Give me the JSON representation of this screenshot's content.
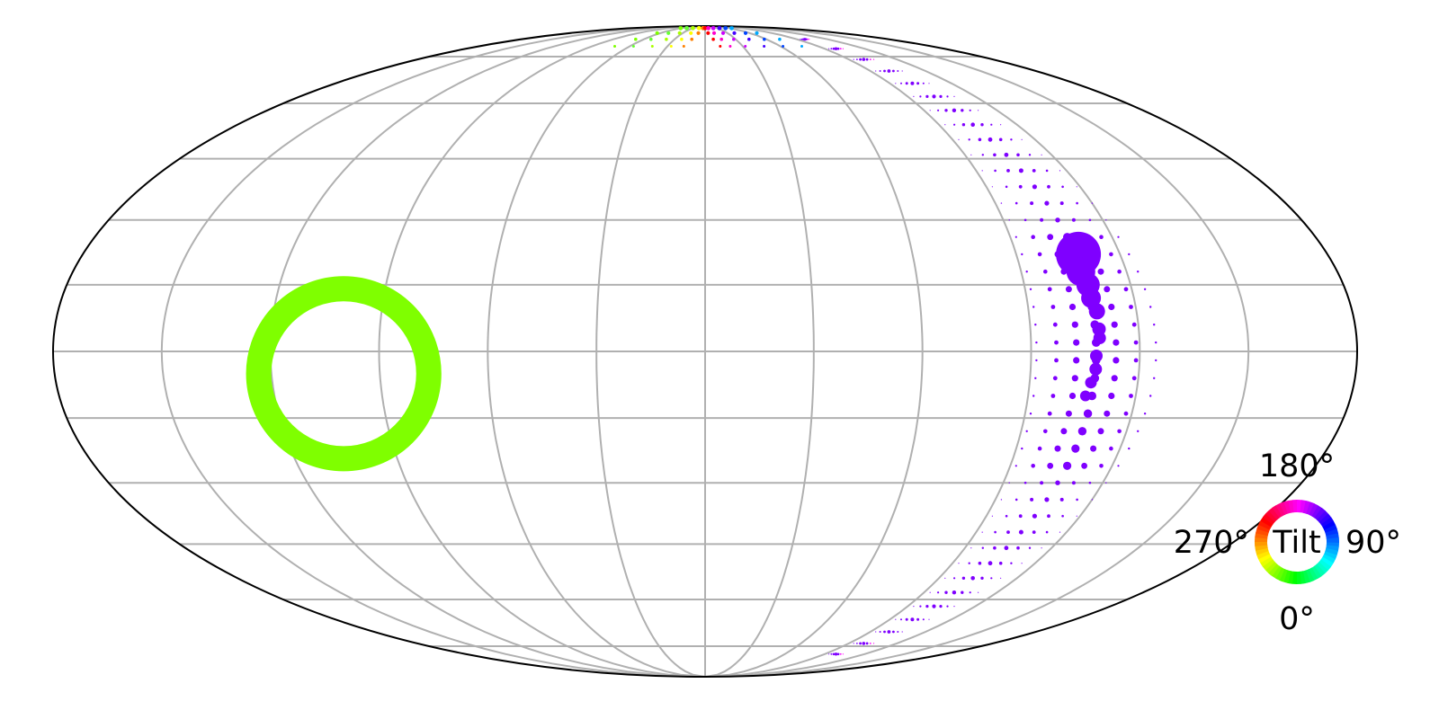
{
  "chart_data": {
    "type": "scatter",
    "projection": "mollweide",
    "grid": true,
    "grid_color": "#b0b0b0",
    "frame_color": "#000000",
    "meridians_deg": [
      -150,
      -120,
      -90,
      -60,
      -30,
      0,
      30,
      60,
      90,
      120,
      150
    ],
    "parallels_deg": [
      -75,
      -60,
      -45,
      -30,
      -15,
      0,
      15,
      30,
      45,
      60,
      75
    ],
    "marker_color_encodes": "tilt angle (hue wheel)",
    "ring_marker": {
      "lon": -100,
      "lat": -5,
      "radius_deg": 22,
      "color": "#7fff00"
    },
    "main_arc": {
      "color": "#7f00ff",
      "lon_equator": 108,
      "points": [
        {
          "lon": 108,
          "lat": 22,
          "size": 5
        },
        {
          "lon": 107,
          "lat": 18,
          "size": 3.2
        },
        {
          "lon": 108,
          "lat": 15,
          "size": 2.6
        },
        {
          "lon": 108,
          "lat": 12,
          "size": 2.2
        },
        {
          "lon": 109,
          "lat": 9,
          "size": 1.8
        },
        {
          "lon": 109,
          "lat": 5,
          "size": 1.5
        },
        {
          "lon": 109,
          "lat": 3,
          "size": 1.4
        },
        {
          "lon": 108,
          "lat": -1,
          "size": 1.4
        },
        {
          "lon": 108,
          "lat": -4,
          "size": 1.4
        },
        {
          "lon": 107,
          "lat": -7,
          "size": 1.3
        },
        {
          "lon": 106,
          "lat": -10,
          "size": 1.2
        }
      ],
      "arc_latitudes": [
        82,
        78,
        74,
        70,
        66,
        62,
        58,
        54,
        50,
        46,
        42,
        38,
        34,
        30,
        26,
        22,
        18,
        14,
        10,
        6,
        2,
        -2,
        -6,
        -10,
        -14,
        -18,
        -22,
        -26,
        -30,
        -34,
        -38,
        -42,
        -46,
        -50,
        -54,
        -58,
        -62,
        -66,
        -70,
        -74,
        -78
      ]
    },
    "top_arc": {
      "colors": [
        "#7fff00",
        "#66ff33",
        "#aaff00",
        "#ffff00",
        "#ff8000",
        "#ff0000",
        "#ff00cc",
        "#cc00ff",
        "#4400ff",
        "#0044ff",
        "#00aaff"
      ],
      "lons": [
        -60,
        -45,
        -30,
        -15,
        -5,
        0,
        8,
        20,
        35,
        50,
        65
      ]
    },
    "legend": {
      "type": "color-wheel",
      "position": "bottom-right",
      "label": "Tilt",
      "tick_top": "180°",
      "tick_right": "90°",
      "tick_bottom": "0°",
      "tick_left": "270°"
    }
  }
}
